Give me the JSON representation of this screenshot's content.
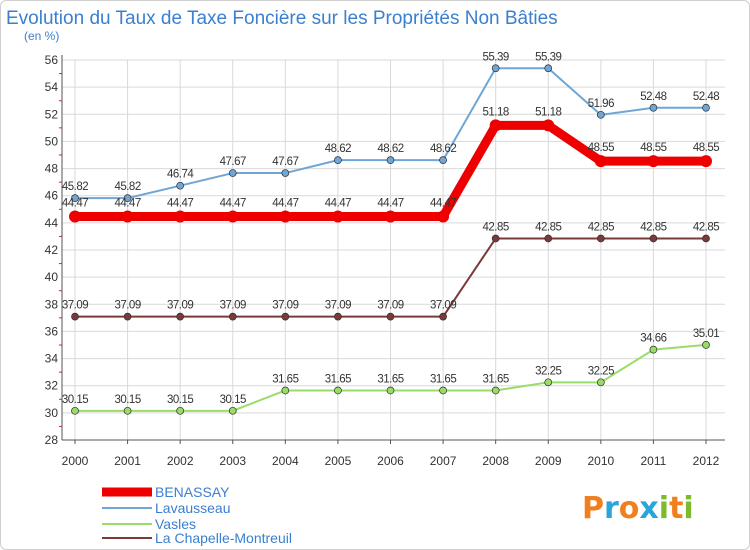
{
  "chart_data": {
    "type": "line",
    "title": "Evolution du Taux de Taxe Foncière sur les Propriétés Non Bâties",
    "subtitle": "(en %)",
    "xlabel": "",
    "ylabel": "",
    "x": [
      "2000",
      "2001",
      "2002",
      "2003",
      "2004",
      "2005",
      "2006",
      "2007",
      "2008",
      "2009",
      "2010",
      "2011",
      "2012"
    ],
    "ylim": [
      28,
      56
    ],
    "yticks": [
      28,
      30,
      32,
      34,
      36,
      38,
      40,
      42,
      44,
      46,
      48,
      50,
      52,
      54,
      56
    ],
    "grid": true,
    "legend_position": "bottom-left",
    "series": [
      {
        "name": "BENASSAY",
        "color": "#ee0000",
        "values": [
          44.47,
          44.47,
          44.47,
          44.47,
          44.47,
          44.47,
          44.47,
          44.47,
          51.18,
          51.18,
          48.55,
          48.55,
          48.55
        ],
        "labels": [
          "44.47",
          "44.47",
          "44.47",
          "44.47",
          "44.47",
          "44.47",
          "44.47",
          "44.47",
          "51.18",
          "51.18",
          "48.55",
          "48.55",
          "48.55"
        ]
      },
      {
        "name": "Lavausseau",
        "color": "#6fa6d6",
        "values": [
          45.82,
          45.82,
          46.74,
          47.67,
          47.67,
          48.62,
          48.62,
          48.62,
          55.39,
          55.39,
          51.96,
          52.48,
          52.48
        ],
        "labels": [
          "45.82",
          "45.82",
          "46.74",
          "47.67",
          "47.67",
          "48.62",
          "48.62",
          "48.62",
          "55.39",
          "55.39",
          "51.96",
          "52.48",
          "52.48"
        ]
      },
      {
        "name": "Vasles",
        "color": "#99dd66",
        "values": [
          30.15,
          30.15,
          30.15,
          30.15,
          31.65,
          31.65,
          31.65,
          31.65,
          31.65,
          32.25,
          32.25,
          34.66,
          35.01
        ],
        "labels": [
          "30.15",
          "30.15",
          "30.15",
          "30.15",
          "31.65",
          "31.65",
          "31.65",
          "31.65",
          "31.65",
          "32.25",
          "32.25",
          "34.66",
          "35.01"
        ]
      },
      {
        "name": "La Chapelle-Montreuil",
        "color": "#7a3a3a",
        "values": [
          37.09,
          37.09,
          37.09,
          37.09,
          37.09,
          37.09,
          37.09,
          37.09,
          42.85,
          42.85,
          42.85,
          42.85,
          42.85
        ],
        "labels": [
          "37.09",
          "37.09",
          "37.09",
          "37.09",
          "37.09",
          "37.09",
          "37.09",
          "37.09",
          "42.85",
          "42.85",
          "42.85",
          "42.85",
          "42.85"
        ]
      }
    ]
  },
  "watermark": {
    "text": "Proxiti",
    "letter_colors": [
      "#f07f1e",
      "#2aa5dc",
      "#f07f1e",
      "#2aa5dc",
      "#7dbb2b",
      "#f07f1e",
      "#7dbb2b"
    ]
  }
}
